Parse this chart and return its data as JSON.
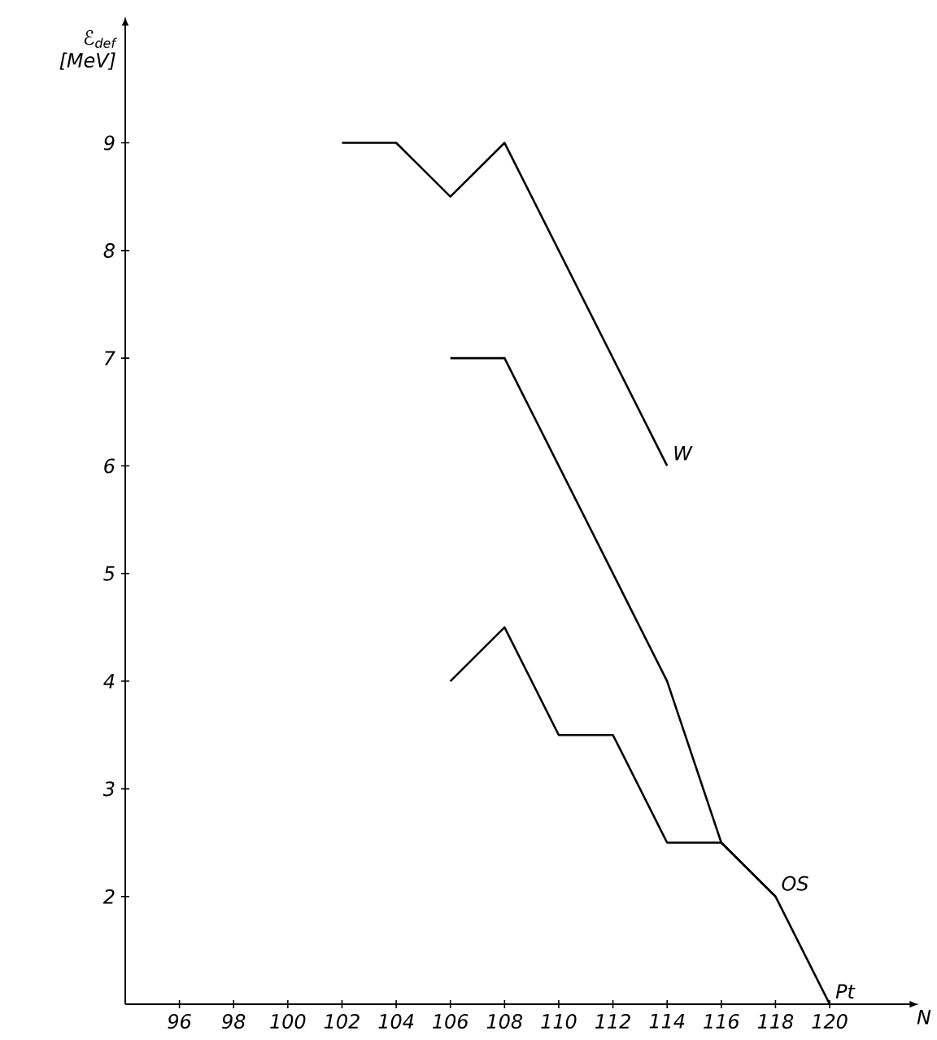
{
  "chart_data": {
    "type": "line",
    "xlabel": "N",
    "ylabel": "ℰ$_{def}$ [MeV]",
    "xlim": [
      94,
      123
    ],
    "ylim": [
      1,
      10.1
    ],
    "xticks": [
      96,
      98,
      100,
      102,
      104,
      106,
      108,
      110,
      112,
      114,
      116,
      118,
      120
    ],
    "yticks": [
      2,
      3,
      4,
      5,
      6,
      7,
      8,
      9
    ],
    "series": [
      {
        "name": "W",
        "color": "#000000",
        "x": [
          102,
          104,
          106,
          108,
          114
        ],
        "values": [
          9,
          9,
          8.5,
          9,
          6
        ]
      },
      {
        "name": "OS",
        "color": "#000000",
        "x": [
          106,
          108,
          114,
          116,
          118
        ],
        "values": [
          7,
          7,
          4,
          2.5,
          2
        ]
      },
      {
        "name": "Pt",
        "color": "#000000",
        "x": [
          106,
          108,
          110,
          112,
          114,
          116,
          118,
          120
        ],
        "values": [
          4,
          4.5,
          3.5,
          3.5,
          2.5,
          2.5,
          2,
          1
        ]
      }
    ]
  }
}
